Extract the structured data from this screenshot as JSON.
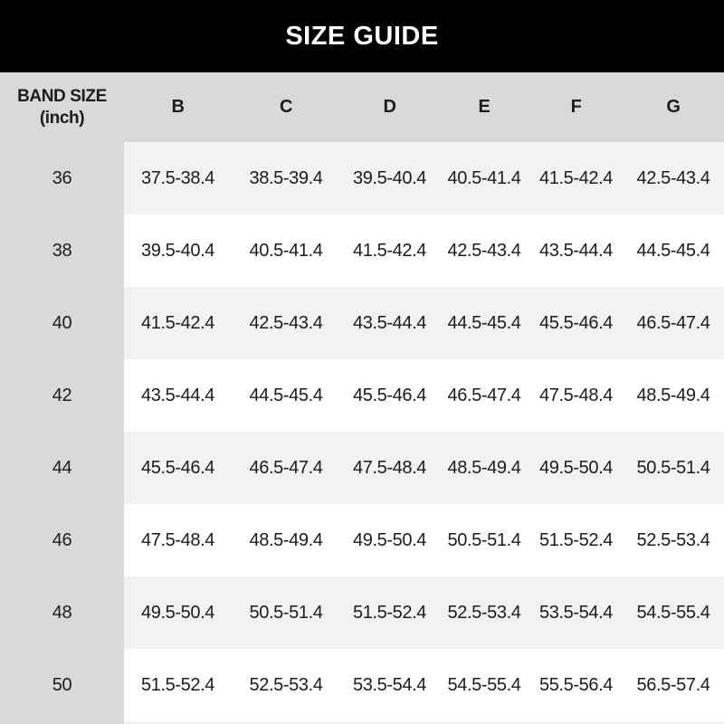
{
  "title": "SIZE GUIDE",
  "colors": {
    "title_bar_bg": "#000000",
    "title_text": "#ffffff",
    "label_column_bg": "#d9d9d9",
    "stripe_row_bg": "#f2f2f2",
    "plain_row_bg": "#ffffff",
    "body_text": "#1c1c1c"
  },
  "chart_data": {
    "type": "table",
    "title": "SIZE GUIDE",
    "corner_header": [
      "BAND SIZE",
      "(inch)"
    ],
    "cup_columns": [
      "B",
      "C",
      "D",
      "E",
      "F",
      "G"
    ],
    "row_label_unit": "inch",
    "rows": [
      {
        "band": "36",
        "values": [
          "37.5-38.4",
          "38.5-39.4",
          "39.5-40.4",
          "40.5-41.4",
          "41.5-42.4",
          "42.5-43.4"
        ]
      },
      {
        "band": "38",
        "values": [
          "39.5-40.4",
          "40.5-41.4",
          "41.5-42.4",
          "42.5-43.4",
          "43.5-44.4",
          "44.5-45.4"
        ]
      },
      {
        "band": "40",
        "values": [
          "41.5-42.4",
          "42.5-43.4",
          "43.5-44.4",
          "44.5-45.4",
          "45.5-46.4",
          "46.5-47.4"
        ]
      },
      {
        "band": "42",
        "values": [
          "43.5-44.4",
          "44.5-45.4",
          "45.5-46.4",
          "46.5-47.4",
          "47.5-48.4",
          "48.5-49.4"
        ]
      },
      {
        "band": "44",
        "values": [
          "45.5-46.4",
          "46.5-47.4",
          "47.5-48.4",
          "48.5-49.4",
          "49.5-50.4",
          "50.5-51.4"
        ]
      },
      {
        "band": "46",
        "values": [
          "47.5-48.4",
          "48.5-49.4",
          "49.5-50.4",
          "50.5-51.4",
          "51.5-52.4",
          "52.5-53.4"
        ]
      },
      {
        "band": "48",
        "values": [
          "49.5-50.4",
          "50.5-51.4",
          "51.5-52.4",
          "52.5-53.4",
          "53.5-54.4",
          "54.5-55.4"
        ]
      },
      {
        "band": "50",
        "values": [
          "51.5-52.4",
          "52.5-53.4",
          "53.5-54.4",
          "54.5-55.4",
          "55.5-56.4",
          "56.5-57.4"
        ]
      }
    ]
  }
}
